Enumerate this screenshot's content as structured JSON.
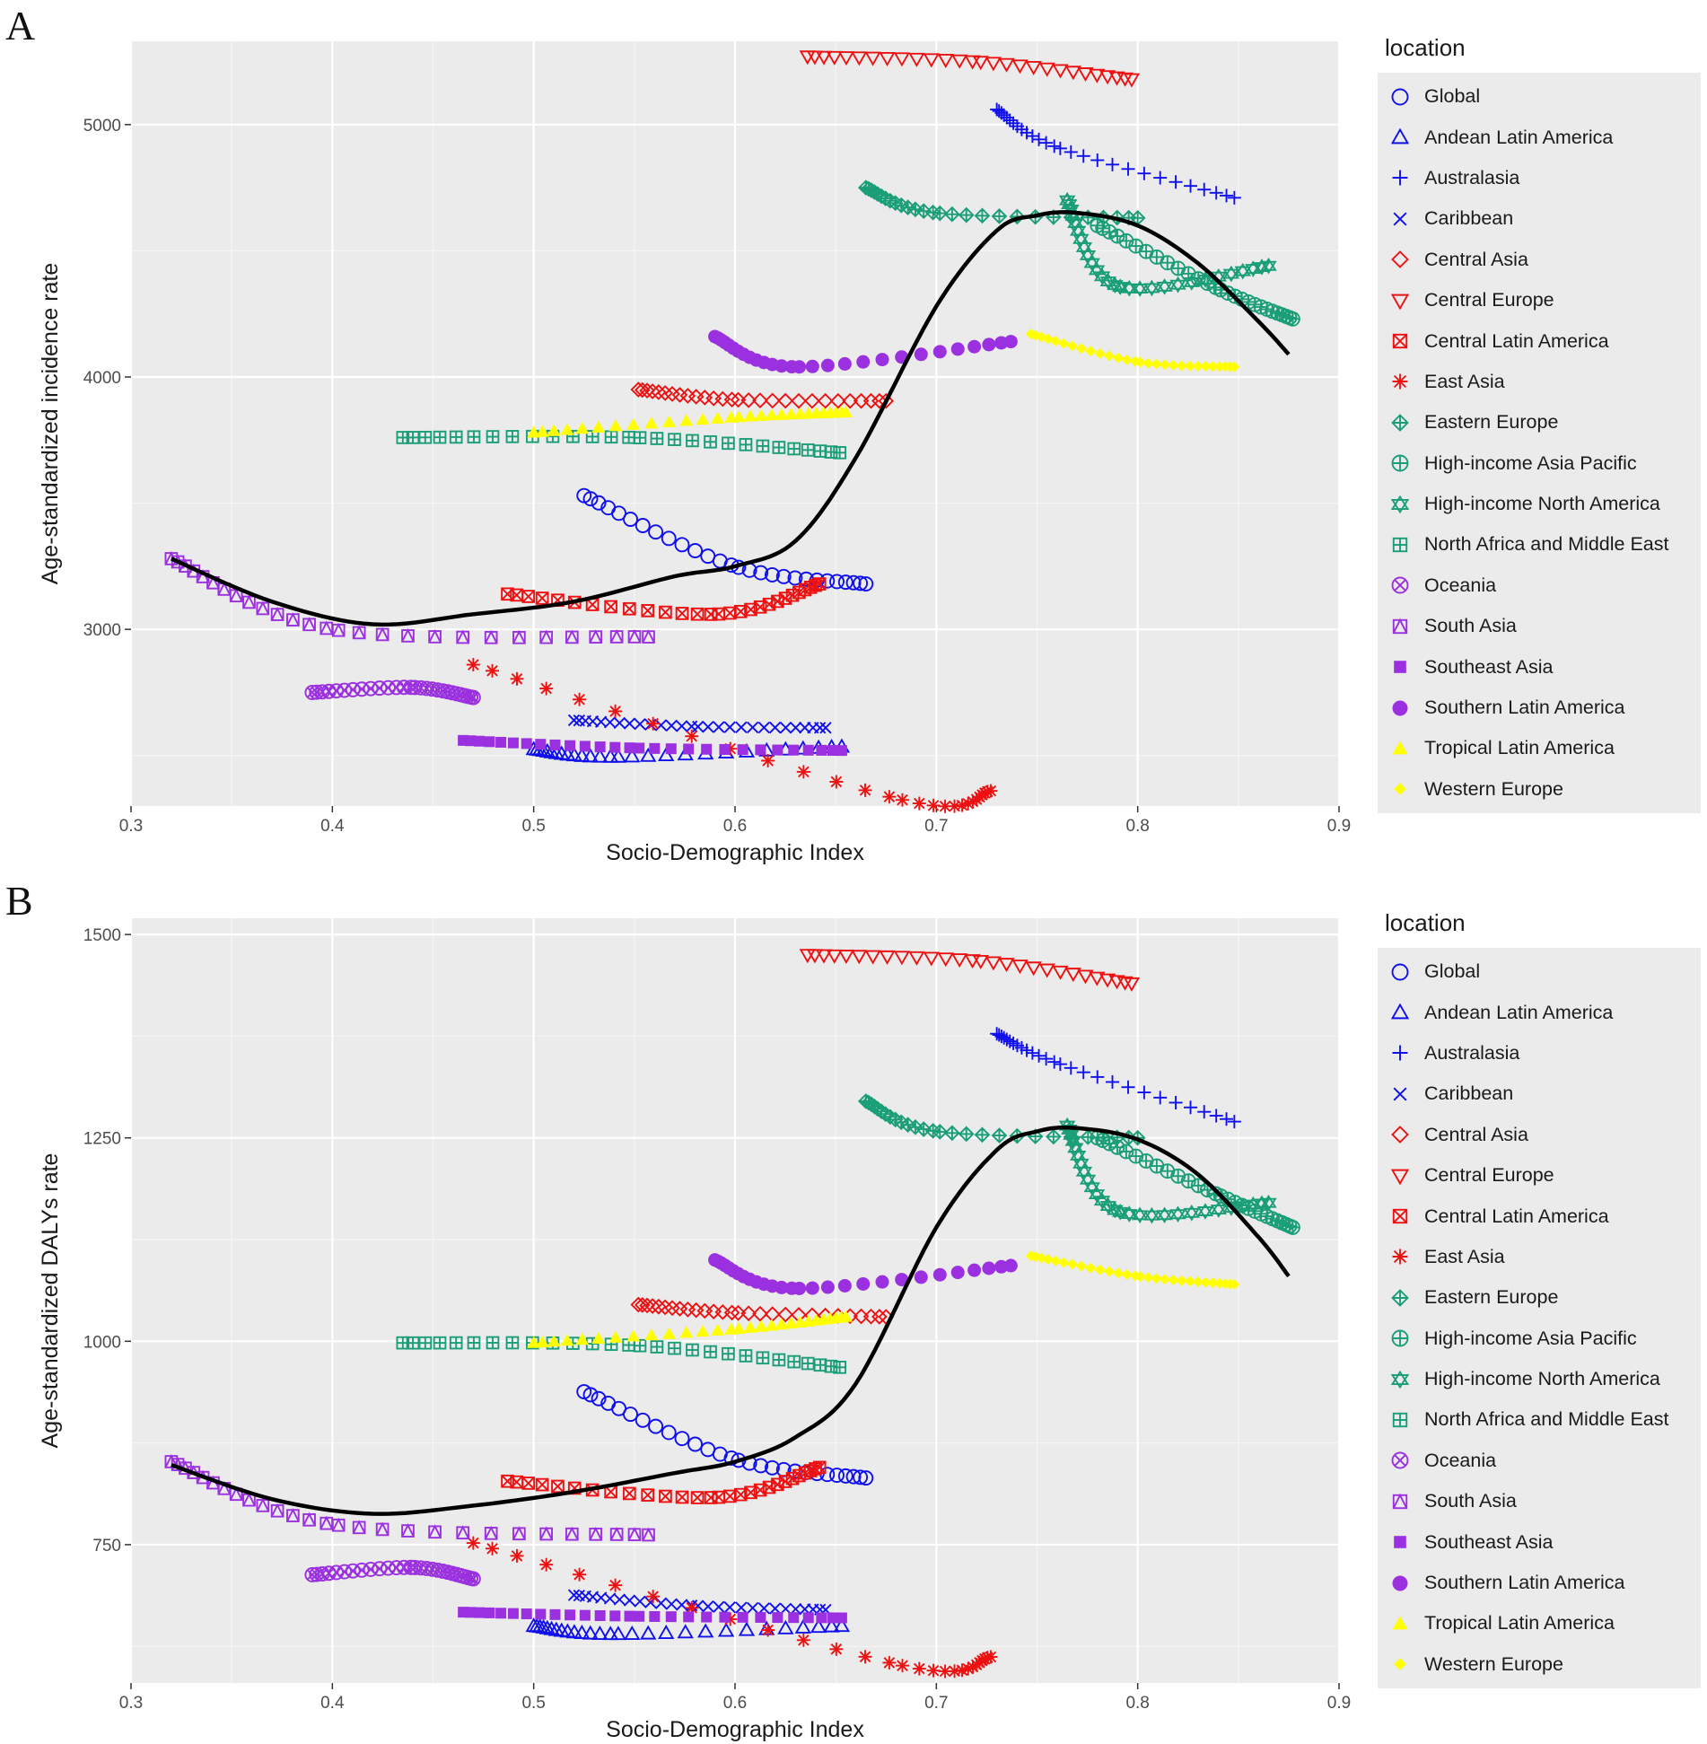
{
  "legend_title": "location",
  "locations": [
    {
      "name": "Global",
      "color": "#1010ee",
      "shape": "circle-open"
    },
    {
      "name": "Andean Latin America",
      "color": "#1010ee",
      "shape": "triangle-open"
    },
    {
      "name": "Australasia",
      "color": "#1010ee",
      "shape": "plus"
    },
    {
      "name": "Caribbean",
      "color": "#1010ee",
      "shape": "cross"
    },
    {
      "name": "Central Asia",
      "color": "#ee1111",
      "shape": "diamond-open"
    },
    {
      "name": "Central Europe",
      "color": "#ee1111",
      "shape": "triangle-down-open"
    },
    {
      "name": "Central Latin America",
      "color": "#ee1111",
      "shape": "square-cross"
    },
    {
      "name": "East Asia",
      "color": "#ee1111",
      "shape": "asterisk"
    },
    {
      "name": "Eastern Europe",
      "color": "#1a9e77",
      "shape": "diamond-plus"
    },
    {
      "name": "High-income Asia Pacific",
      "color": "#1a9e77",
      "shape": "circle-plus"
    },
    {
      "name": "High-income North America",
      "color": "#1a9e77",
      "shape": "star-of-david"
    },
    {
      "name": "North Africa and Middle East",
      "color": "#1a9e77",
      "shape": "square-plus"
    },
    {
      "name": "Oceania",
      "color": "#9b30e0",
      "shape": "circle-cross"
    },
    {
      "name": "South Asia",
      "color": "#9b30e0",
      "shape": "square-triangle"
    },
    {
      "name": "Southeast Asia",
      "color": "#9b30e0",
      "shape": "square-filled"
    },
    {
      "name": "Southern Latin America",
      "color": "#9b30e0",
      "shape": "circle-filled"
    },
    {
      "name": "Tropical Latin America",
      "color": "#ffff00",
      "shape": "triangle-filled"
    },
    {
      "name": "Western Europe",
      "color": "#ffff00",
      "shape": "diamond-filled"
    }
  ],
  "chart_data": [
    {
      "panel": "A",
      "type": "scatter",
      "xlabel": "Socio-Demographic Index",
      "ylabel": "Age-standardized incidence rate",
      "xlim": [
        0.3,
        0.9
      ],
      "xticks": [
        0.3,
        0.4,
        0.5,
        0.6,
        0.7,
        0.8,
        0.9
      ],
      "ylim": [
        2300,
        5330
      ],
      "yticks": [
        3000,
        4000,
        5000
      ],
      "smooth": {
        "x": [
          0.32,
          0.37,
          0.42,
          0.47,
          0.52,
          0.57,
          0.6,
          0.63,
          0.66,
          0.7,
          0.73,
          0.75,
          0.77,
          0.8,
          0.83,
          0.86,
          0.875
        ],
        "y": [
          3280,
          3110,
          3020,
          3060,
          3110,
          3210,
          3250,
          3350,
          3680,
          4280,
          4580,
          4640,
          4650,
          4600,
          4450,
          4220,
          4090
        ]
      },
      "series": [
        {
          "name": "Global",
          "x": [
            0.525,
            0.665
          ],
          "y": [
            3530,
            3180
          ],
          "mid": [
            0.6,
            3250
          ]
        },
        {
          "name": "Andean Latin America",
          "x": [
            0.5,
            0.653
          ],
          "y": [
            2525,
            2535
          ],
          "mid": [
            0.54,
            2495
          ]
        },
        {
          "name": "Australasia",
          "x": [
            0.73,
            0.848
          ],
          "y": [
            5060,
            4710
          ],
          "mid": [
            0.76,
            4910
          ]
        },
        {
          "name": "Caribbean",
          "x": [
            0.52,
            0.645
          ],
          "y": [
            2640,
            2610
          ],
          "mid": [
            0.58,
            2615
          ]
        },
        {
          "name": "Central Asia",
          "x": [
            0.552,
            0.675
          ],
          "y": [
            3950,
            3905
          ],
          "mid": [
            0.6,
            3910
          ]
        },
        {
          "name": "Central Europe",
          "x": [
            0.636,
            0.797
          ],
          "y": [
            5270,
            5180
          ],
          "mid": [
            0.72,
            5250
          ]
        },
        {
          "name": "Central Latin America",
          "x": [
            0.487,
            0.642
          ],
          "y": [
            3140,
            3180
          ],
          "mid": [
            0.59,
            3060
          ]
        },
        {
          "name": "East Asia",
          "x": [
            0.47,
            0.727
          ],
          "y": [
            2860,
            2360
          ],
          "mid": [
            0.68,
            2330
          ]
        },
        {
          "name": "Eastern Europe",
          "x": [
            0.665,
            0.8
          ],
          "y": [
            4750,
            4630
          ],
          "mid": [
            0.7,
            4650
          ]
        },
        {
          "name": "High-income Asia Pacific",
          "x": [
            0.78,
            0.877
          ],
          "y": [
            4600,
            4230
          ],
          "mid": [
            0.84,
            4350
          ]
        },
        {
          "name": "High-income North America",
          "x": [
            0.765,
            0.865
          ],
          "y": [
            4700,
            4440
          ],
          "mid": [
            0.79,
            4360
          ]
        },
        {
          "name": "North Africa and Middle East",
          "x": [
            0.435,
            0.652
          ],
          "y": [
            3760,
            3700
          ],
          "mid": [
            0.55,
            3760
          ]
        },
        {
          "name": "Oceania",
          "x": [
            0.39,
            0.47
          ],
          "y": [
            2750,
            2730
          ],
          "mid": [
            0.44,
            2770
          ]
        },
        {
          "name": "South Asia",
          "x": [
            0.32,
            0.557
          ],
          "y": [
            3280,
            2970
          ],
          "mid": [
            0.4,
            3000
          ]
        },
        {
          "name": "Southeast Asia",
          "x": [
            0.465,
            0.653
          ],
          "y": [
            2560,
            2520
          ],
          "mid": [
            0.55,
            2530
          ]
        },
        {
          "name": "Southern Latin America",
          "x": [
            0.59,
            0.737
          ],
          "y": [
            4160,
            4140
          ],
          "mid": [
            0.63,
            4040
          ]
        },
        {
          "name": "Tropical Latin America",
          "x": [
            0.5,
            0.655
          ],
          "y": [
            3780,
            3860
          ],
          "mid": [
            0.6,
            3840
          ]
        },
        {
          "name": "Western Europe",
          "x": [
            0.747,
            0.848
          ],
          "y": [
            4170,
            4040
          ],
          "mid": [
            0.8,
            4060
          ]
        }
      ]
    },
    {
      "panel": "B",
      "type": "scatter",
      "xlabel": "Socio-Demographic Index",
      "ylabel": "Age-standardized DALYs rate",
      "xlim": [
        0.3,
        0.9
      ],
      "xticks": [
        0.3,
        0.4,
        0.5,
        0.6,
        0.7,
        0.8,
        0.9
      ],
      "ylim": [
        580,
        1520
      ],
      "yticks": [
        750,
        1000,
        1250,
        1500
      ],
      "smooth": {
        "x": [
          0.32,
          0.37,
          0.42,
          0.47,
          0.52,
          0.57,
          0.6,
          0.63,
          0.66,
          0.7,
          0.73,
          0.75,
          0.77,
          0.8,
          0.83,
          0.86,
          0.875
        ],
        "y": [
          848,
          806,
          788,
          798,
          815,
          838,
          852,
          882,
          948,
          1140,
          1235,
          1258,
          1262,
          1248,
          1205,
          1128,
          1080
        ]
      },
      "series": [
        {
          "name": "Global",
          "x": [
            0.525,
            0.665
          ],
          "y": [
            938,
            832
          ],
          "mid": [
            0.6,
            855
          ]
        },
        {
          "name": "Andean Latin America",
          "x": [
            0.5,
            0.653
          ],
          "y": [
            650,
            650
          ],
          "mid": [
            0.54,
            640
          ]
        },
        {
          "name": "Australasia",
          "x": [
            0.73,
            0.848
          ],
          "y": [
            1378,
            1270
          ],
          "mid": [
            0.76,
            1342
          ]
        },
        {
          "name": "Caribbean",
          "x": [
            0.52,
            0.645
          ],
          "y": [
            688,
            670
          ],
          "mid": [
            0.58,
            675
          ]
        },
        {
          "name": "Central Asia",
          "x": [
            0.552,
            0.675
          ],
          "y": [
            1045,
            1030
          ],
          "mid": [
            0.6,
            1035
          ]
        },
        {
          "name": "Central Europe",
          "x": [
            0.636,
            0.797
          ],
          "y": [
            1475,
            1440
          ],
          "mid": [
            0.72,
            1468
          ]
        },
        {
          "name": "Central Latin America",
          "x": [
            0.487,
            0.642
          ],
          "y": [
            828,
            845
          ],
          "mid": [
            0.59,
            808
          ]
        },
        {
          "name": "East Asia",
          "x": [
            0.47,
            0.727
          ],
          "y": [
            752,
            612
          ],
          "mid": [
            0.68,
            603
          ]
        },
        {
          "name": "Eastern Europe",
          "x": [
            0.665,
            0.8
          ],
          "y": [
            1295,
            1250
          ],
          "mid": [
            0.7,
            1258
          ]
        },
        {
          "name": "High-income Asia Pacific",
          "x": [
            0.78,
            0.877
          ],
          "y": [
            1250,
            1140
          ],
          "mid": [
            0.84,
            1180
          ]
        },
        {
          "name": "High-income North America",
          "x": [
            0.765,
            0.865
          ],
          "y": [
            1265,
            1170
          ],
          "mid": [
            0.79,
            1160
          ]
        },
        {
          "name": "North Africa and Middle East",
          "x": [
            0.435,
            0.652
          ],
          "y": [
            998,
            968
          ],
          "mid": [
            0.55,
            995
          ]
        },
        {
          "name": "Oceania",
          "x": [
            0.39,
            0.47
          ],
          "y": [
            713,
            708
          ],
          "mid": [
            0.44,
            722
          ]
        },
        {
          "name": "South Asia",
          "x": [
            0.32,
            0.557
          ],
          "y": [
            852,
            762
          ],
          "mid": [
            0.4,
            775
          ]
        },
        {
          "name": "Southeast Asia",
          "x": [
            0.465,
            0.653
          ],
          "y": [
            667,
            660
          ],
          "mid": [
            0.55,
            662
          ]
        },
        {
          "name": "Southern Latin America",
          "x": [
            0.59,
            0.737
          ],
          "y": [
            1100,
            1093
          ],
          "mid": [
            0.63,
            1065
          ]
        },
        {
          "name": "Tropical Latin America",
          "x": [
            0.5,
            0.655
          ],
          "y": [
            998,
            1030
          ],
          "mid": [
            0.6,
            1015
          ]
        },
        {
          "name": "Western Europe",
          "x": [
            0.747,
            0.848
          ],
          "y": [
            1105,
            1070
          ],
          "mid": [
            0.8,
            1080
          ]
        }
      ]
    }
  ],
  "panels": [
    {
      "letter": "A"
    },
    {
      "letter": "B"
    }
  ]
}
